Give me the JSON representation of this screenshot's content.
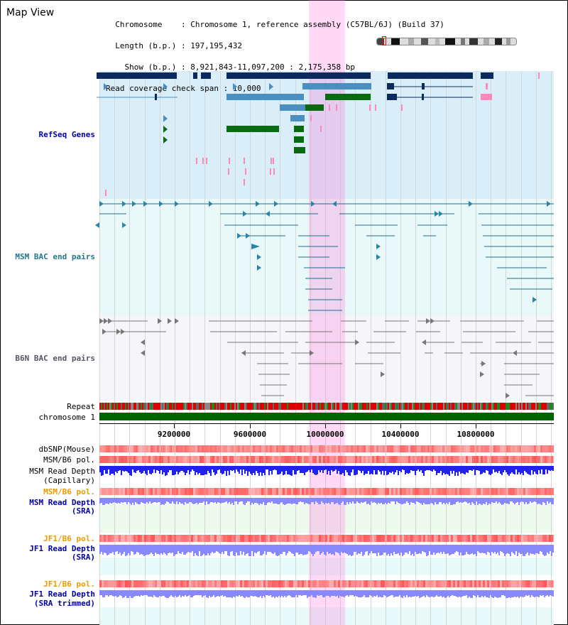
{
  "view_title": "Map View",
  "info": {
    "lines": [
      "  Chromosome    : Chromosome 1, reference assembly (C57BL/6J) (Build 37)",
      "  Length (b.p.) : 197,195,432",
      "    Show (b.p.) : 8,921,843-11,097,200 : 2,175,358 bp",
      "Read coverage check span : 10,000"
    ]
  },
  "tracks": {
    "refseq": "RefSeq Genes",
    "msm_bac": "MSM BAC end pairs",
    "b6n_bac": "B6N BAC end pairs",
    "repeat": "Repeat",
    "chromosome": "chromosome 1",
    "dbsnp": "dbSNP(Mouse)",
    "msm_b6_pol_1": "MSM/B6 pol.",
    "msm_read_depth_cap_1": "MSM Read Depth",
    "msm_read_depth_cap_2": "(Capillary)",
    "msm_b6_pol_2": "MSM/B6 pol.",
    "msm_read_depth_sra_1": "MSM Read Depth",
    "msm_read_depth_sra_2": "(SRA)",
    "jf1_b6_pol_1": "JF1/B6 pol.",
    "jf1_read_depth_1": "JF1 Read Depth",
    "jf1_read_depth_2": "(SRA)",
    "jf1_b6_pol_2": "JF1/B6 pol.",
    "jf1_read_depth_trim_1": "JF1 Read Depth",
    "jf1_read_depth_trim_2": "(SRA trimmed)"
  },
  "axis": {
    "ticks": [
      "9200000",
      "9600000",
      "10000000",
      "10400000",
      "10800000"
    ]
  },
  "colors": {
    "refseq_bg": "#d9eef8",
    "msm_bg": "#e9f8f8",
    "b6n_bg": "#f6f6fa",
    "gene_dark": "#0b2a5e",
    "gene_mid": "#4a8fbf",
    "gene_green": "#0a6a12",
    "pink_feature": "#ff88bb",
    "msm_line": "#1e6e8e",
    "b6n_line": "#777777",
    "chrom_green": "#006400",
    "depth_blue": "#2222ee",
    "depth_lavender": "#8888ff",
    "pol_red": "#ee3333",
    "label_blue": "#0000aa",
    "label_teal": "#227788",
    "label_gray": "#555566",
    "label_orange": "#ee9900"
  }
}
